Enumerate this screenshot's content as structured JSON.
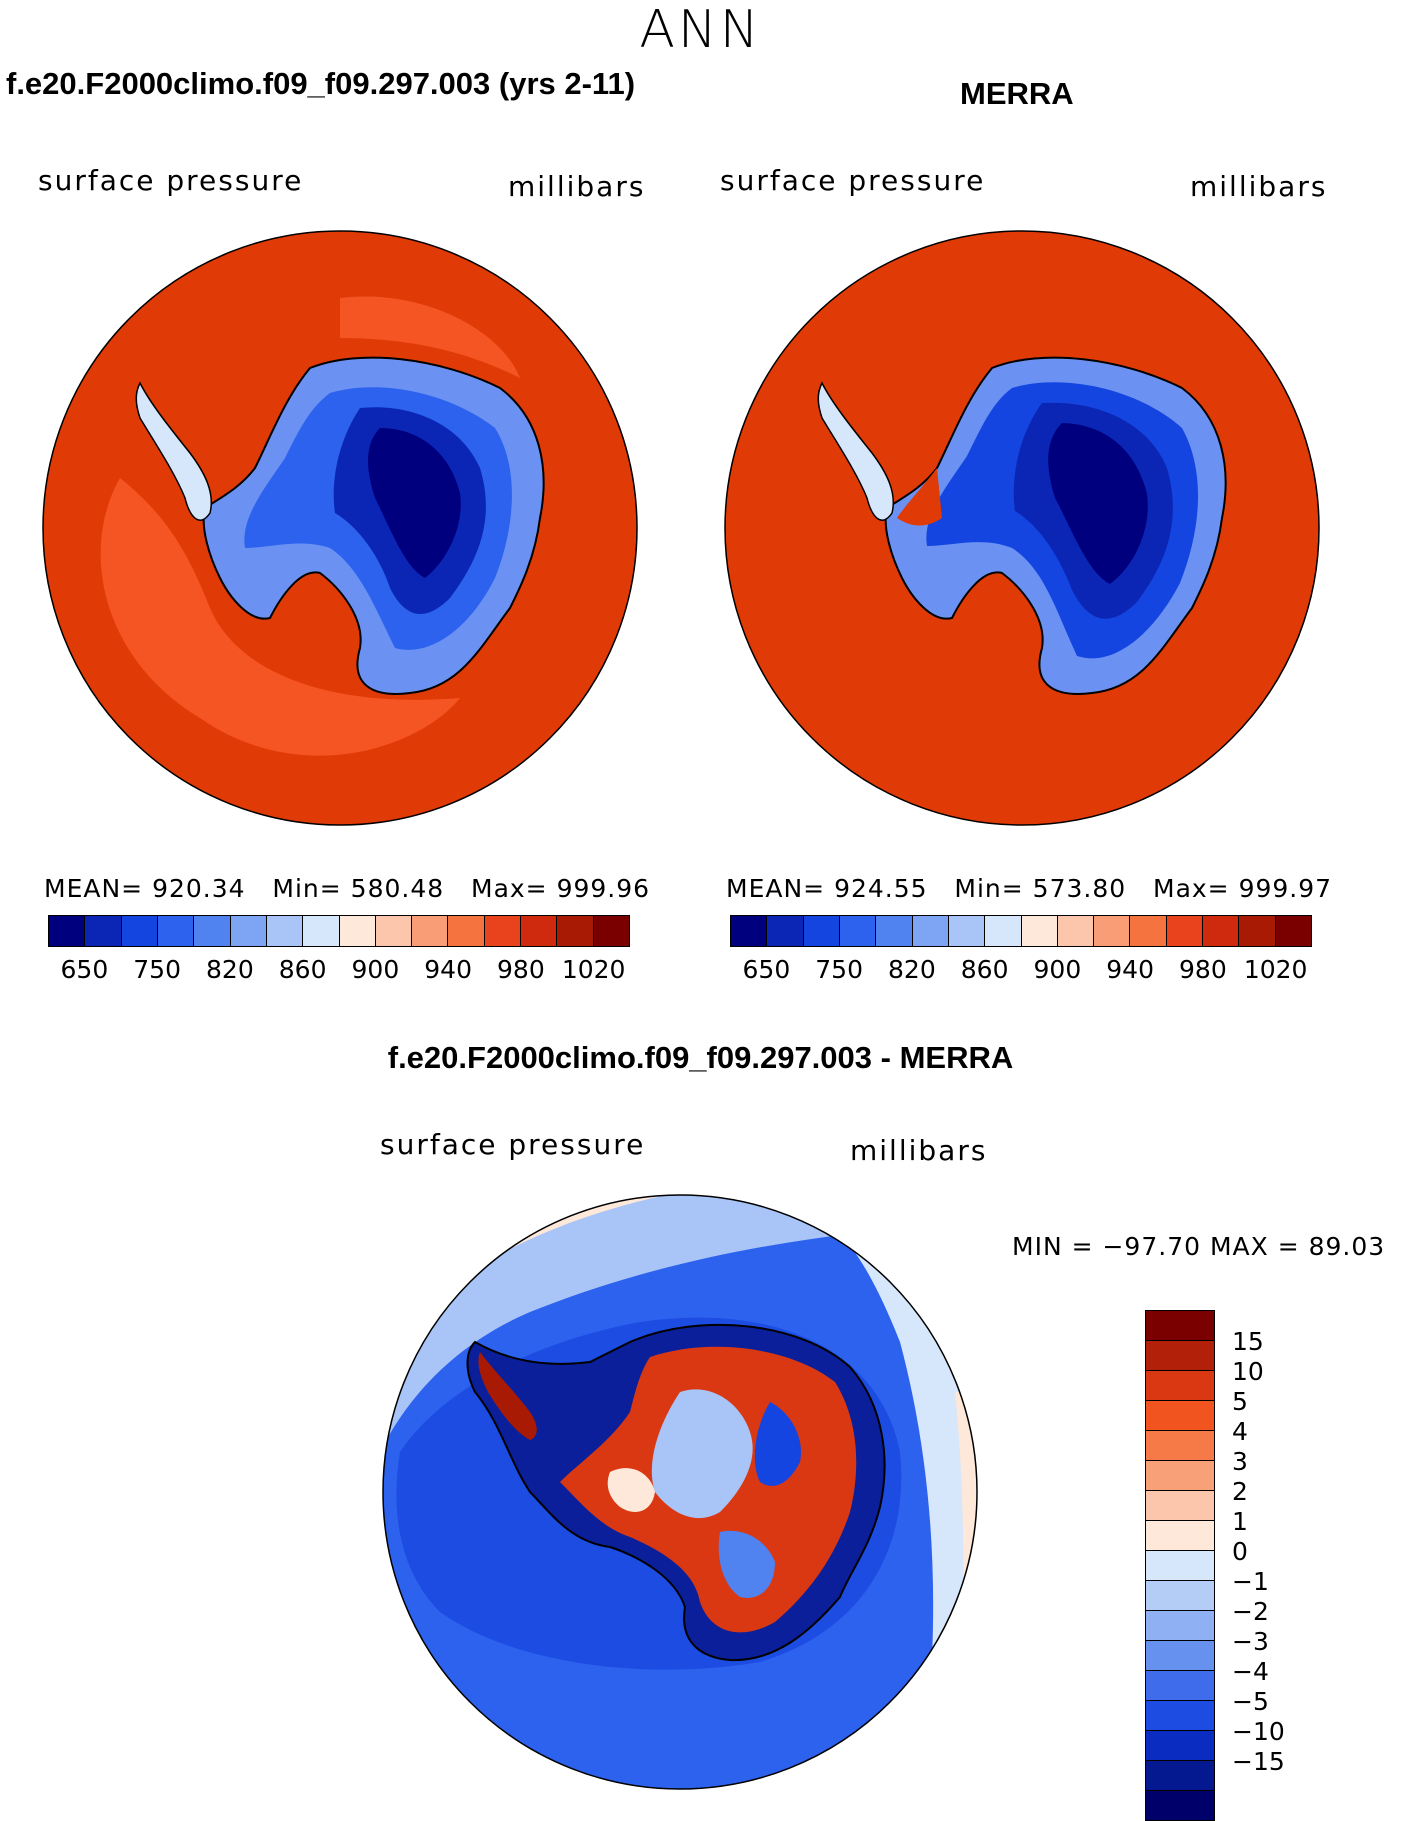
{
  "season": "ANN",
  "panels": [
    {
      "title": "f.e20.F2000climo.f09_f09.297.003 (yrs 2-11)",
      "variable": "surface pressure",
      "units": "millibars",
      "stats": {
        "mean_label": "MEAN=",
        "mean": "920.34",
        "min_label": "Min=",
        "min": "580.48",
        "max_label": "Max=",
        "max": "999.96"
      }
    },
    {
      "title": "MERRA",
      "variable": "surface pressure",
      "units": "millibars",
      "stats": {
        "mean_label": "MEAN=",
        "mean": "924.55",
        "min_label": "Min=",
        "min": "573.80",
        "max_label": "Max=",
        "max": "999.97"
      }
    }
  ],
  "diff_panel": {
    "title": "f.e20.F2000climo.f09_f09.297.003 - MERRA",
    "variable": "surface pressure",
    "units": "millibars",
    "minmax": "MIN = −97.70 MAX =   89.03"
  },
  "colorbar_main": {
    "colors": [
      "#00007f",
      "#0b26b5",
      "#1445e0",
      "#2c62ee",
      "#5083f0",
      "#7ea5f3",
      "#a9c4f6",
      "#d6e6fb",
      "#fde8da",
      "#fbc6ac",
      "#f89d75",
      "#f5733f",
      "#e8431d",
      "#cf2a0e",
      "#a91a05",
      "#7a0000"
    ],
    "tick_labels": [
      "650",
      "750",
      "820",
      "860",
      "900",
      "940",
      "980",
      "1020"
    ]
  },
  "colorbar_diff": {
    "colors": [
      "#7a0000",
      "#b3200a",
      "#d93812",
      "#f2541f",
      "#f67a47",
      "#f8a178",
      "#fbc6ac",
      "#fde8da",
      "#d6e6fb",
      "#b4cdf6",
      "#8fb0f2",
      "#6791ee",
      "#3e6cea",
      "#1d4ce3",
      "#0b2cc0",
      "#04188f",
      "#00006a"
    ],
    "tick_labels": [
      "15",
      "10",
      "5",
      "4",
      "3",
      "2",
      "1",
      "0",
      "−1",
      "−2",
      "−3",
      "−4",
      "−5",
      "−10",
      "−15"
    ]
  }
}
